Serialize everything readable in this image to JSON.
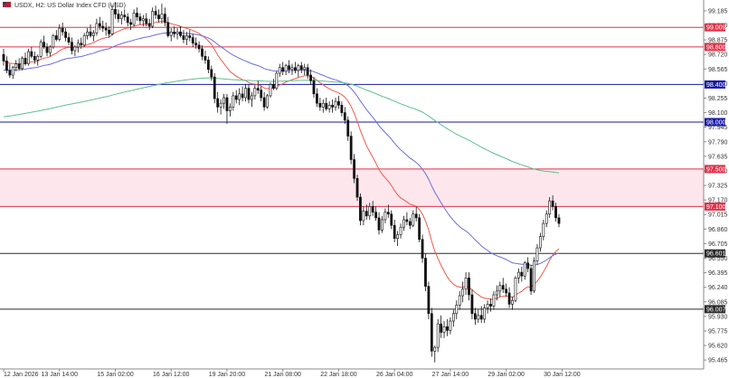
{
  "header": {
    "title": "USDX, H2:  US Dollar Index CFD (USD)",
    "flag_colors": [
      "#b22234",
      "#3c3b6e"
    ]
  },
  "colors": {
    "ema_fast": "#ef5a4a",
    "ema_mid": "#6b6fd8",
    "ema_slow": "#5fbf8f",
    "candle": "#111111",
    "level_red": "#e0324b",
    "level_blue": "#1a1aa6",
    "level_dark": "#2a2a2a",
    "zone_fill": "#fde6ec"
  },
  "chart_data": {
    "type": "candlestick",
    "title": "USDX, H2:  US Dollar Index CFD (USD)",
    "y_ticks": [
      "99.185",
      "99.030",
      "98.875",
      "98.720",
      "98.565",
      "98.410",
      "98.255",
      "98.100",
      "97.945",
      "97.790",
      "97.635",
      "97.480",
      "97.325",
      "97.170",
      "97.015",
      "96.860",
      "96.705",
      "96.550",
      "96.395",
      "96.240",
      "96.085",
      "95.930",
      "95.775",
      "95.620",
      "95.465"
    ],
    "ylim": [
      95.37,
      99.3
    ],
    "x_ticks": [
      "12 Jan 2026",
      "13 Jan 14:00",
      "15 Jan 02:00",
      "16 Jan 12:00",
      "19 Jan 20:00",
      "21 Jan 08:00",
      "22 Jan 18:00",
      "26 Jan 04:00",
      "27 Jan 14:00",
      "29 Jan 02:00",
      "30 Jan 12:00"
    ],
    "x_tick_index": [
      0,
      18,
      36,
      54,
      72,
      90,
      108,
      126,
      144,
      162,
      180
    ],
    "horizontal_levels": [
      {
        "value": 99.009,
        "label": "99.009",
        "style": "red"
      },
      {
        "value": 98.8,
        "label": "98.800",
        "style": "red"
      },
      {
        "value": 98.4,
        "label": "98.400",
        "style": "blue"
      },
      {
        "value": 98.0,
        "label": "98.000",
        "style": "blue"
      },
      {
        "value": 97.5,
        "label": "97.500",
        "style": "red"
      },
      {
        "value": 97.1,
        "label": "97.100",
        "style": "red"
      },
      {
        "value": 96.601,
        "label": "96.601",
        "style": "dark"
      },
      {
        "value": 96.007,
        "label": "96.007",
        "style": "dark"
      }
    ],
    "zone": {
      "from": 97.1,
      "to": 97.5
    },
    "ohlc_start_index": 0,
    "ohlc": [
      [
        98.72,
        98.78,
        98.6,
        98.65
      ],
      [
        98.65,
        98.7,
        98.52,
        98.55
      ],
      [
        98.55,
        98.62,
        98.47,
        98.5
      ],
      [
        98.5,
        98.6,
        98.46,
        98.58
      ],
      [
        98.58,
        98.66,
        98.54,
        98.62
      ],
      [
        98.62,
        98.68,
        98.55,
        98.57
      ],
      [
        98.57,
        98.7,
        98.55,
        98.68
      ],
      [
        98.68,
        98.74,
        98.6,
        98.62
      ],
      [
        98.62,
        98.78,
        98.6,
        98.75
      ],
      [
        98.75,
        98.8,
        98.68,
        98.7
      ],
      [
        98.7,
        98.75,
        98.62,
        98.66
      ],
      [
        98.66,
        98.72,
        98.6,
        98.7
      ],
      [
        98.7,
        98.88,
        98.68,
        98.85
      ],
      [
        98.85,
        98.92,
        98.78,
        98.8
      ],
      [
        98.8,
        98.84,
        98.7,
        98.74
      ],
      [
        98.74,
        98.82,
        98.7,
        98.8
      ],
      [
        98.8,
        98.94,
        98.78,
        98.92
      ],
      [
        98.92,
        98.98,
        98.86,
        98.88
      ],
      [
        98.88,
        99.04,
        98.86,
        99.0
      ],
      [
        99.0,
        99.06,
        98.92,
        98.96
      ],
      [
        98.96,
        99.0,
        98.86,
        98.9
      ],
      [
        98.9,
        98.95,
        98.82,
        98.85
      ],
      [
        98.85,
        98.9,
        98.72,
        98.76
      ],
      [
        98.76,
        98.82,
        98.7,
        98.8
      ],
      [
        98.8,
        98.88,
        98.74,
        98.84
      ],
      [
        98.84,
        98.9,
        98.78,
        98.82
      ],
      [
        98.82,
        98.95,
        98.8,
        98.92
      ],
      [
        98.92,
        99.0,
        98.88,
        98.96
      ],
      [
        98.96,
        99.04,
        98.9,
        98.92
      ],
      [
        98.92,
        98.98,
        98.86,
        98.95
      ],
      [
        98.95,
        99.1,
        98.92,
        99.05
      ],
      [
        99.05,
        99.12,
        98.98,
        99.02
      ],
      [
        99.02,
        99.08,
        98.96,
        99.0
      ],
      [
        99.0,
        99.06,
        98.92,
        98.98
      ],
      [
        98.98,
        99.02,
        98.9,
        98.94
      ],
      [
        98.94,
        99.25,
        98.92,
        99.2
      ],
      [
        99.2,
        99.28,
        99.1,
        99.15
      ],
      [
        99.15,
        99.2,
        99.06,
        99.1
      ],
      [
        99.1,
        99.18,
        99.04,
        99.14
      ],
      [
        99.14,
        99.2,
        99.08,
        99.12
      ],
      [
        99.12,
        99.16,
        99.02,
        99.06
      ],
      [
        99.06,
        99.1,
        98.98,
        99.04
      ],
      [
        99.04,
        99.2,
        99.02,
        99.16
      ],
      [
        99.16,
        99.22,
        99.08,
        99.12
      ],
      [
        99.12,
        99.16,
        99.04,
        99.08
      ],
      [
        99.08,
        99.14,
        99.02,
        99.1
      ],
      [
        99.1,
        99.16,
        99.02,
        99.05
      ],
      [
        99.05,
        99.1,
        98.98,
        99.02
      ],
      [
        99.02,
        99.22,
        99.0,
        99.18
      ],
      [
        99.18,
        99.24,
        99.1,
        99.14
      ],
      [
        99.14,
        99.2,
        99.06,
        99.1
      ],
      [
        99.1,
        99.26,
        99.05,
        99.15
      ],
      [
        99.15,
        99.22,
        99.02,
        99.06
      ],
      [
        99.06,
        99.12,
        98.9,
        98.92
      ],
      [
        98.92,
        99.0,
        98.86,
        98.96
      ],
      [
        98.96,
        99.02,
        98.9,
        98.94
      ],
      [
        98.94,
        99.0,
        98.88,
        98.96
      ],
      [
        98.96,
        99.02,
        98.9,
        98.92
      ],
      [
        98.92,
        98.98,
        98.84,
        98.88
      ],
      [
        98.88,
        98.96,
        98.82,
        98.92
      ],
      [
        98.92,
        98.98,
        98.86,
        98.9
      ],
      [
        98.9,
        98.94,
        98.8,
        98.84
      ],
      [
        98.84,
        98.9,
        98.78,
        98.82
      ],
      [
        98.82,
        98.86,
        98.74,
        98.78
      ],
      [
        98.78,
        98.82,
        98.66,
        98.7
      ],
      [
        98.7,
        98.76,
        98.62,
        98.66
      ],
      [
        98.66,
        98.7,
        98.52,
        98.56
      ],
      [
        98.56,
        98.6,
        98.44,
        98.48
      ],
      [
        98.48,
        98.52,
        98.2,
        98.25
      ],
      [
        98.25,
        98.32,
        98.1,
        98.16
      ],
      [
        98.16,
        98.24,
        98.08,
        98.2
      ],
      [
        98.2,
        98.3,
        98.14,
        98.26
      ],
      [
        98.26,
        98.3,
        97.98,
        98.12
      ],
      [
        98.12,
        98.2,
        98.06,
        98.16
      ],
      [
        98.16,
        98.32,
        98.12,
        98.28
      ],
      [
        98.28,
        98.34,
        98.2,
        98.24
      ],
      [
        98.24,
        98.36,
        98.18,
        98.3
      ],
      [
        98.3,
        98.38,
        98.22,
        98.26
      ],
      [
        98.26,
        98.4,
        98.22,
        98.36
      ],
      [
        98.36,
        98.4,
        98.2,
        98.24
      ],
      [
        98.24,
        98.32,
        98.16,
        98.28
      ],
      [
        98.28,
        98.4,
        98.24,
        98.36
      ],
      [
        98.36,
        98.44,
        98.3,
        98.34
      ],
      [
        98.34,
        98.38,
        98.22,
        98.26
      ],
      [
        98.26,
        98.32,
        98.12,
        98.16
      ],
      [
        98.16,
        98.3,
        98.14,
        98.28
      ],
      [
        98.28,
        98.42,
        98.26,
        98.4
      ],
      [
        98.4,
        98.46,
        98.34,
        98.36
      ],
      [
        98.36,
        98.54,
        98.34,
        98.52
      ],
      [
        98.52,
        98.62,
        98.48,
        98.58
      ],
      [
        98.58,
        98.64,
        98.5,
        98.54
      ],
      [
        98.54,
        98.62,
        98.5,
        98.6
      ],
      [
        98.6,
        98.66,
        98.52,
        98.56
      ],
      [
        98.56,
        98.62,
        98.5,
        98.58
      ],
      [
        98.58,
        98.64,
        98.52,
        98.55
      ],
      [
        98.55,
        98.62,
        98.48,
        98.6
      ],
      [
        98.6,
        98.64,
        98.52,
        98.56
      ],
      [
        98.56,
        98.62,
        98.5,
        98.58
      ],
      [
        98.58,
        98.62,
        98.46,
        98.5
      ],
      [
        98.5,
        98.56,
        98.4,
        98.44
      ],
      [
        98.44,
        98.48,
        98.26,
        98.3
      ],
      [
        98.3,
        98.36,
        98.16,
        98.2
      ],
      [
        98.2,
        98.26,
        98.12,
        98.16
      ],
      [
        98.16,
        98.24,
        98.1,
        98.2
      ],
      [
        98.2,
        98.26,
        98.12,
        98.14
      ],
      [
        98.14,
        98.22,
        98.1,
        98.18
      ],
      [
        98.18,
        98.24,
        98.1,
        98.16
      ],
      [
        98.16,
        98.26,
        98.12,
        98.22
      ],
      [
        98.22,
        98.28,
        98.14,
        98.18
      ],
      [
        98.18,
        98.22,
        98.06,
        98.1
      ],
      [
        98.1,
        98.16,
        97.98,
        98.02
      ],
      [
        98.02,
        98.06,
        97.8,
        97.85
      ],
      [
        97.85,
        97.9,
        97.55,
        97.6
      ],
      [
        97.6,
        97.66,
        97.35,
        97.4
      ],
      [
        97.4,
        97.44,
        97.16,
        97.2
      ],
      [
        97.2,
        97.24,
        96.9,
        96.95
      ],
      [
        96.95,
        97.1,
        96.9,
        97.05
      ],
      [
        97.05,
        97.12,
        96.96,
        97.0
      ],
      [
        97.0,
        97.14,
        96.96,
        97.1
      ],
      [
        97.1,
        97.16,
        97.0,
        97.04
      ],
      [
        97.04,
        97.1,
        96.95,
        96.98
      ],
      [
        96.98,
        97.04,
        96.8,
        96.85
      ],
      [
        96.85,
        97.0,
        96.82,
        96.96
      ],
      [
        96.96,
        97.08,
        96.92,
        97.04
      ],
      [
        97.04,
        97.12,
        96.98,
        97.02
      ],
      [
        97.02,
        97.06,
        96.86,
        96.9
      ],
      [
        96.9,
        96.96,
        96.72,
        96.76
      ],
      [
        96.76,
        96.84,
        96.68,
        96.8
      ],
      [
        96.8,
        96.92,
        96.76,
        96.88
      ],
      [
        96.88,
        97.0,
        96.84,
        96.96
      ],
      [
        96.96,
        97.04,
        96.9,
        96.94
      ],
      [
        96.94,
        96.98,
        96.86,
        96.9
      ],
      [
        96.9,
        97.06,
        96.88,
        97.02
      ],
      [
        97.02,
        97.1,
        96.94,
        96.98
      ],
      [
        96.98,
        97.02,
        96.72,
        96.75
      ],
      [
        96.75,
        96.8,
        96.5,
        96.55
      ],
      [
        96.55,
        96.6,
        96.2,
        96.25
      ],
      [
        96.25,
        96.3,
        95.9,
        95.96
      ],
      [
        95.96,
        96.02,
        95.5,
        95.56
      ],
      [
        95.56,
        95.62,
        95.44,
        95.6
      ],
      [
        95.6,
        95.9,
        95.55,
        95.85
      ],
      [
        95.85,
        95.94,
        95.7,
        95.76
      ],
      [
        95.76,
        95.88,
        95.7,
        95.82
      ],
      [
        95.82,
        95.9,
        95.72,
        95.78
      ],
      [
        95.78,
        95.92,
        95.74,
        95.88
      ],
      [
        95.88,
        96.0,
        95.82,
        95.96
      ],
      [
        95.96,
        96.1,
        95.9,
        96.05
      ],
      [
        96.05,
        96.2,
        96.0,
        96.15
      ],
      [
        96.15,
        96.3,
        96.08,
        96.22
      ],
      [
        96.22,
        96.4,
        96.16,
        96.34
      ],
      [
        96.34,
        96.4,
        96.1,
        96.16
      ],
      [
        96.16,
        96.22,
        95.9,
        95.96
      ],
      [
        95.96,
        96.02,
        95.84,
        95.9
      ],
      [
        95.9,
        96.0,
        95.86,
        95.94
      ],
      [
        95.94,
        96.04,
        95.86,
        95.9
      ],
      [
        95.9,
        96.06,
        95.86,
        96.02
      ],
      [
        96.02,
        96.1,
        95.96,
        96.06
      ],
      [
        96.06,
        96.12,
        95.98,
        96.04
      ],
      [
        96.04,
        96.2,
        96.0,
        96.16
      ],
      [
        96.16,
        96.26,
        96.1,
        96.2
      ],
      [
        96.2,
        96.3,
        96.14,
        96.26
      ],
      [
        96.26,
        96.34,
        96.18,
        96.22
      ],
      [
        96.22,
        96.28,
        96.14,
        96.18
      ],
      [
        96.18,
        96.24,
        96.02,
        96.06
      ],
      [
        96.06,
        96.14,
        96.0,
        96.1
      ],
      [
        96.1,
        96.36,
        96.08,
        96.34
      ],
      [
        96.34,
        96.44,
        96.28,
        96.4
      ],
      [
        96.4,
        96.46,
        96.3,
        96.36
      ],
      [
        96.36,
        96.52,
        96.32,
        96.5
      ],
      [
        96.5,
        96.56,
        96.4,
        96.44
      ],
      [
        96.44,
        96.48,
        96.16,
        96.2
      ],
      [
        96.2,
        96.56,
        96.18,
        96.52
      ],
      [
        96.52,
        96.7,
        96.48,
        96.66
      ],
      [
        96.66,
        96.82,
        96.62,
        96.78
      ],
      [
        96.78,
        96.96,
        96.74,
        96.92
      ],
      [
        96.92,
        97.06,
        96.88,
        97.02
      ],
      [
        97.02,
        97.2,
        96.98,
        97.16
      ],
      [
        97.16,
        97.22,
        97.06,
        97.1
      ],
      [
        97.1,
        97.14,
        96.94,
        96.98
      ],
      [
        96.98,
        97.02,
        96.88,
        96.92
      ]
    ],
    "moving_averages": [
      {
        "color_key": "ema_fast",
        "period": 20
      },
      {
        "color_key": "ema_mid",
        "period": 50
      },
      {
        "color_key": "ema_slow",
        "period": 200
      }
    ]
  }
}
